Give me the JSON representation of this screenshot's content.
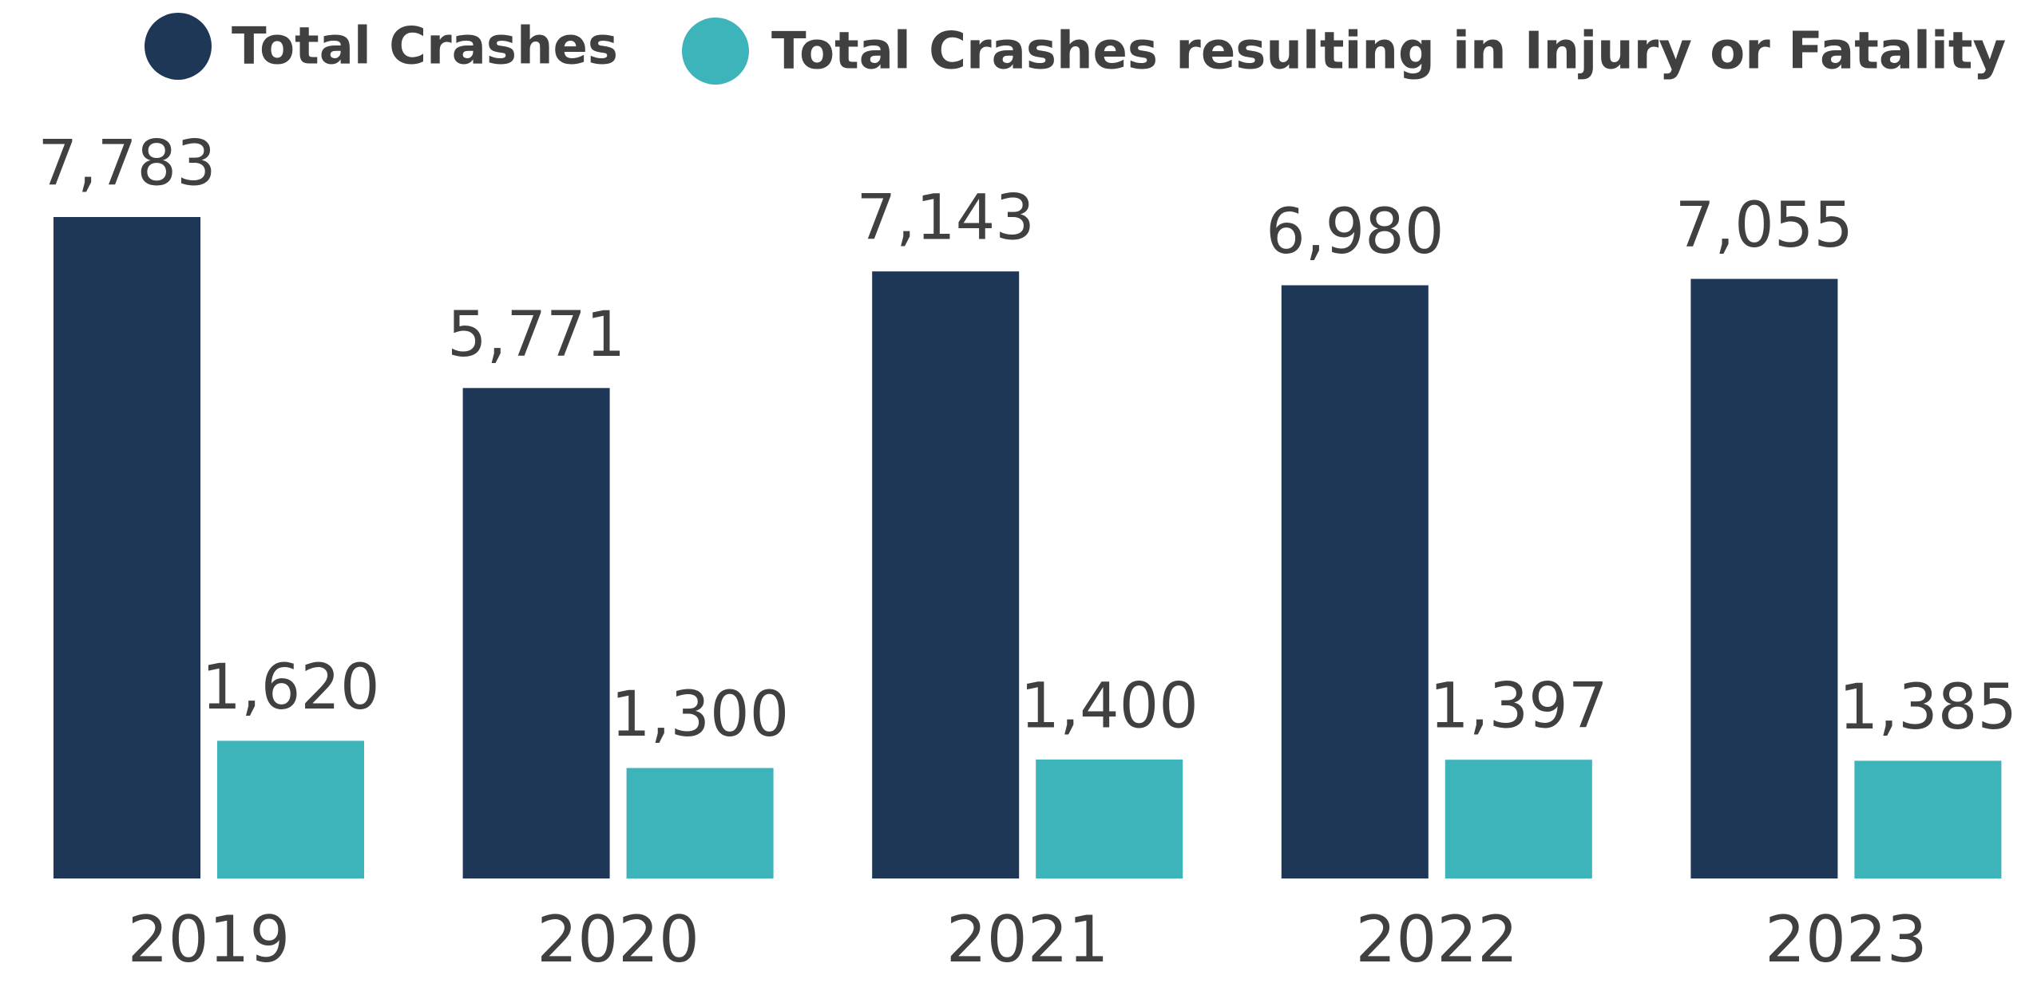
{
  "chart_data": {
    "type": "bar",
    "categories": [
      "2019",
      "2020",
      "2021",
      "2022",
      "2023"
    ],
    "series": [
      {
        "name": "Total Crashes",
        "color": "#1e3756",
        "values": [
          7783,
          5771,
          7143,
          6980,
          7055
        ],
        "value_labels": [
          "7,783",
          "5,771",
          "7,143",
          "6,980",
          "7,055"
        ]
      },
      {
        "name": "Total Crashes resulting in Injury or Fatality",
        "color": "#3db3ba",
        "values": [
          1620,
          1300,
          1400,
          1397,
          1385
        ],
        "value_labels": [
          "1,620",
          "1,300",
          "1,400",
          "1,397",
          "1,385"
        ]
      }
    ],
    "legend": "top",
    "grid": false
  }
}
